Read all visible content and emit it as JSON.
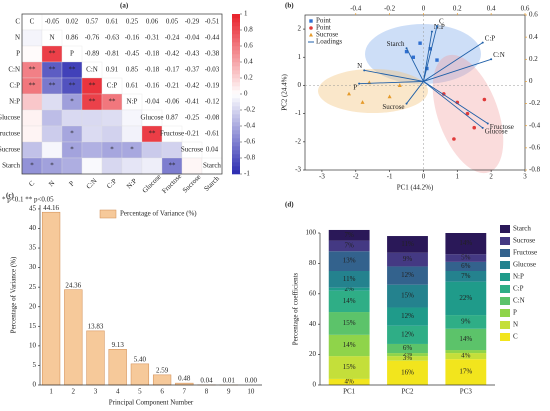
{
  "chart_data": [
    {
      "type": "heatmap",
      "panel": "(a)",
      "variables": [
        "C",
        "N",
        "P",
        "C:N",
        "C:P",
        "N:P",
        "Glucose",
        "Fructose",
        "Sucrose",
        "Starch"
      ],
      "values": [
        [
          1,
          -0.05,
          0.02,
          0.57,
          0.61,
          0.25,
          0.06,
          0.05,
          -0.29,
          -0.51
        ],
        [
          -0.05,
          1,
          0.86,
          -0.76,
          -0.63,
          -0.16,
          -0.31,
          -0.24,
          -0.04,
          -0.44
        ],
        [
          0.02,
          0.86,
          1,
          -0.89,
          -0.81,
          -0.45,
          -0.18,
          -0.42,
          -0.43,
          -0.38
        ],
        [
          0.57,
          -0.76,
          -0.89,
          1,
          0.91,
          0.85,
          -0.18,
          -0.17,
          -0.37,
          -0.03
        ],
        [
          0.61,
          -0.63,
          -0.81,
          0.91,
          1,
          0.61,
          -0.16,
          -0.21,
          -0.42,
          -0.19
        ],
        [
          0.25,
          -0.16,
          -0.45,
          0.85,
          0.61,
          1,
          -0.04,
          -0.06,
          -0.41,
          -0.12
        ],
        [
          0.06,
          -0.31,
          -0.18,
          -0.18,
          -0.16,
          -0.04,
          1,
          0.87,
          -0.25,
          -0.08
        ],
        [
          0.05,
          -0.24,
          -0.42,
          -0.17,
          -0.21,
          -0.06,
          0.87,
          1,
          -0.21,
          -0.61
        ],
        [
          -0.29,
          -0.04,
          -0.43,
          -0.37,
          -0.42,
          -0.41,
          -0.25,
          -0.21,
          1,
          0.04
        ],
        [
          -0.51,
          -0.44,
          -0.38,
          -0.03,
          -0.19,
          -0.12,
          -0.08,
          -0.61,
          0.04,
          1
        ]
      ],
      "stars": [
        [
          null,
          null,
          null,
          null,
          null,
          null,
          null,
          null,
          null,
          null
        ],
        [
          null,
          null,
          null,
          null,
          null,
          null,
          null,
          null,
          null,
          null
        ],
        [
          null,
          "**",
          null,
          null,
          null,
          null,
          null,
          null,
          null,
          null
        ],
        [
          "**",
          "**",
          "**",
          null,
          null,
          null,
          null,
          null,
          null,
          null
        ],
        [
          "**",
          "**",
          "**",
          "**",
          null,
          null,
          null,
          null,
          null,
          null
        ],
        [
          null,
          null,
          "*",
          "**",
          "**",
          null,
          null,
          null,
          null,
          null
        ],
        [
          null,
          null,
          null,
          null,
          null,
          null,
          null,
          null,
          null,
          null
        ],
        [
          null,
          null,
          "*",
          null,
          null,
          null,
          "**",
          null,
          null,
          null
        ],
        [
          null,
          null,
          "*",
          null,
          "*",
          "*",
          null,
          null,
          null,
          null
        ],
        [
          "*",
          "*",
          null,
          null,
          null,
          null,
          null,
          "**",
          null,
          null
        ]
      ],
      "zlim": [
        -1,
        1
      ],
      "zticks": [
        1,
        0.8,
        0.6,
        0.4,
        0.2,
        0,
        -0.2,
        -0.4,
        -0.6,
        -0.8,
        -1
      ],
      "positive_color": "#e8202a",
      "negative_color": "#2a2ab0",
      "footnote": "* p<0.1  ** p<0.05"
    },
    {
      "type": "biplot",
      "panel": "(b)",
      "xlabel": "PC1 (44.2%)",
      "ylabel": "PC2 (24.4%)",
      "xlim": [
        -3.5,
        3
      ],
      "xticks": [
        -3,
        -2,
        -1,
        0,
        1,
        2,
        3
      ],
      "ylim": [
        -3,
        2.5
      ],
      "yticks": [
        -3,
        -2,
        -1,
        0,
        1,
        2
      ],
      "x2lim": [
        -0.7,
        0.6
      ],
      "x2ticks": [
        -0.4,
        -0.2,
        0,
        0.2,
        0.4,
        0.6
      ],
      "y2lim": [
        -0.8,
        0.6
      ],
      "y2ticks": [
        -0.8,
        -0.6,
        -0.4,
        -0.2,
        0,
        0.2,
        0.4,
        0.6
      ],
      "series": [
        {
          "name": "Point",
          "marker": "square",
          "color": "#2f6fd0",
          "x": [
            -0.5,
            -0.3,
            0.2,
            0.4,
            0.1,
            -0.1
          ],
          "y": [
            1.2,
            1,
            1.3,
            0.9,
            0.6,
            1.5
          ]
        },
        {
          "name": "Point",
          "marker": "circle",
          "color": "#e03a3a",
          "x": [
            1,
            1.3,
            0.6,
            1.8,
            1.5,
            0.9
          ],
          "y": [
            -0.6,
            -1,
            -0.3,
            -0.5,
            -1.5,
            -1.9
          ]
        },
        {
          "name": "Sucrose",
          "marker": "triangle",
          "color": "#e59a2a",
          "x": [
            -2.2,
            -1.6,
            -1,
            -0.7,
            -1.8
          ],
          "y": [
            -0.3,
            0.1,
            -0.4,
            0,
            -0.6
          ]
        }
      ],
      "loadings": {
        "name": "Loadings",
        "color": "#1f5fa8",
        "labels": [
          "Starch",
          "N:P",
          "C",
          "C:P",
          "C:N",
          "N",
          "P",
          "Sucrose",
          "Fructose",
          "Glucose"
        ],
        "x": [
          -0.1,
          0.05,
          0.08,
          0.35,
          0.4,
          -0.35,
          -0.38,
          -0.1,
          0.38,
          0.35
        ],
        "y": [
          0.3,
          0.45,
          0.5,
          0.35,
          0.2,
          0.1,
          -0.02,
          -0.2,
          -0.38,
          -0.42
        ]
      }
    },
    {
      "type": "bar",
      "panel": "(c)",
      "xlabel": "Principal Component Number",
      "ylabel": "Percentage of Variance (%)",
      "categories": [
        "1",
        "2",
        "3",
        "4",
        "5",
        "6",
        "7",
        "8",
        "9",
        "10"
      ],
      "series": [
        {
          "name": "Percentage of Variance (%)",
          "color": "#f6c99a",
          "values": [
            44.16,
            24.36,
            13.83,
            9.13,
            5.4,
            2.59,
            0.48,
            0.04,
            0.01,
            0
          ],
          "value_labels": [
            "44.16",
            "24.36",
            "13.83",
            "9.13",
            "5.40",
            "2.59",
            "0.48",
            "0.04",
            "0.01",
            "0.00"
          ]
        }
      ],
      "ylim": [
        0,
        46
      ],
      "yticks": [
        0,
        5,
        10,
        15,
        20,
        25,
        30,
        35,
        40,
        45
      ]
    },
    {
      "type": "stacked_bar",
      "panel": "(d)",
      "ylabel": "Percentage of coefficients",
      "categories": [
        "PC1",
        "PC2",
        "PC3"
      ],
      "ylim": [
        0,
        100
      ],
      "yticks": [
        0,
        20,
        40,
        60,
        80,
        100
      ],
      "series": [
        {
          "name": "C",
          "color": "#f2e51d",
          "values": [
            4,
            16,
            17
          ],
          "value_labels": [
            "4%",
            "16%",
            "17%"
          ]
        },
        {
          "name": "N",
          "color": "#c4df3a",
          "values": [
            15,
            3,
            4
          ],
          "value_labels": [
            "15%",
            "3%",
            "4%"
          ]
        },
        {
          "name": "P",
          "color": "#8fd44a",
          "values": [
            14,
            2,
            2
          ],
          "value_labels": [
            "14%",
            "2%",
            null
          ]
        },
        {
          "name": "C:N",
          "color": "#5cc36a",
          "values": [
            15,
            6,
            14
          ],
          "value_labels": [
            "15%",
            "6%",
            "14%"
          ]
        },
        {
          "name": "C:P",
          "color": "#2fae86",
          "values": [
            14,
            12,
            9
          ],
          "value_labels": [
            "14%",
            "12%",
            "9%"
          ]
        },
        {
          "name": "N:P",
          "color": "#1f9b8a",
          "values": [
            2,
            12,
            22
          ],
          "value_labels": [
            "2%",
            "12%",
            "22%"
          ]
        },
        {
          "name": "Glucose",
          "color": "#24828e",
          "values": [
            11,
            15,
            7
          ],
          "value_labels": [
            "11%",
            "15%",
            "7%"
          ]
        },
        {
          "name": "Fructose",
          "color": "#33628d",
          "values": [
            13,
            12,
            6
          ],
          "value_labels": [
            "13%",
            "12%",
            "6%"
          ]
        },
        {
          "name": "Sucrose",
          "color": "#443983",
          "values": [
            7,
            9,
            5
          ],
          "value_labels": [
            "7%",
            "9%",
            "5%"
          ]
        },
        {
          "name": "Starch",
          "color": "#2a1858",
          "values": [
            7,
            11,
            14
          ],
          "value_labels": [
            "7%",
            "11%",
            "14%"
          ]
        }
      ]
    }
  ]
}
